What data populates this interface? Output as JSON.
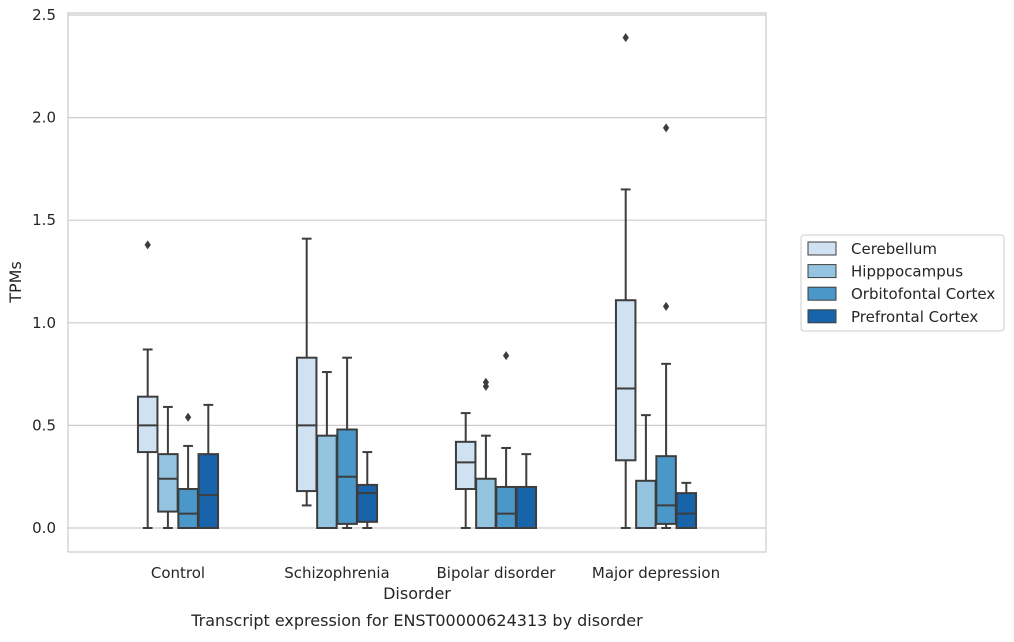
{
  "chart_data": {
    "type": "box",
    "title": "Transcript expression for ENST00000624313 by disorder",
    "xlabel": "Disorder",
    "ylabel": "TPMs",
    "ylim": [
      -0.11,
      2.51
    ],
    "yticks": [
      0.0,
      0.5,
      1.0,
      1.5,
      2.0,
      2.5
    ],
    "ytick_labels": [
      "0.0",
      "0.5",
      "1.0",
      "1.5",
      "2.0",
      "2.5"
    ],
    "grid": "horizontal",
    "legend_position": "right",
    "categories": [
      "Control",
      "Schizophrenia",
      "Bipolar disorder",
      "Major depression"
    ],
    "series": [
      {
        "name": "Cerebellum",
        "color": "#d0e1f2",
        "boxes": [
          {
            "whislo": 0.0,
            "q1": 0.37,
            "med": 0.5,
            "q3": 0.64,
            "whishi": 0.87,
            "fliers": [
              1.38
            ]
          },
          {
            "whislo": 0.11,
            "q1": 0.18,
            "med": 0.5,
            "q3": 0.83,
            "whishi": 1.41,
            "fliers": []
          },
          {
            "whislo": 0.0,
            "q1": 0.19,
            "med": 0.32,
            "q3": 0.42,
            "whishi": 0.56,
            "fliers": []
          },
          {
            "whislo": 0.0,
            "q1": 0.33,
            "med": 0.68,
            "q3": 1.11,
            "whishi": 1.65,
            "fliers": [
              2.39
            ]
          }
        ]
      },
      {
        "name": "Hipppocampus",
        "color": "#94c4df",
        "boxes": [
          {
            "whislo": 0.0,
            "q1": 0.08,
            "med": 0.24,
            "q3": 0.36,
            "whishi": 0.59,
            "fliers": []
          },
          {
            "whislo": 0.0,
            "q1": 0.0,
            "med": 0.0,
            "q3": 0.45,
            "whishi": 0.76,
            "fliers": []
          },
          {
            "whislo": 0.0,
            "q1": 0.0,
            "med": 0.0,
            "q3": 0.24,
            "whishi": 0.45,
            "fliers": [
              0.69,
              0.71
            ]
          },
          {
            "whislo": 0.0,
            "q1": 0.0,
            "med": 0.0,
            "q3": 0.23,
            "whishi": 0.55,
            "fliers": []
          }
        ]
      },
      {
        "name": "Orbitofontal Cortex",
        "color": "#4a98c9",
        "boxes": [
          {
            "whislo": 0.0,
            "q1": 0.0,
            "med": 0.07,
            "q3": 0.19,
            "whishi": 0.4,
            "fliers": [
              0.54
            ]
          },
          {
            "whislo": 0.0,
            "q1": 0.02,
            "med": 0.25,
            "q3": 0.48,
            "whishi": 0.83,
            "fliers": []
          },
          {
            "whislo": 0.0,
            "q1": 0.0,
            "med": 0.07,
            "q3": 0.2,
            "whishi": 0.39,
            "fliers": [
              0.84
            ]
          },
          {
            "whislo": 0.0,
            "q1": 0.02,
            "med": 0.11,
            "q3": 0.35,
            "whishi": 0.8,
            "fliers": [
              1.08,
              1.95
            ]
          }
        ]
      },
      {
        "name": "Prefrontal Cortex",
        "color": "#1764ab",
        "boxes": [
          {
            "whislo": 0.0,
            "q1": 0.0,
            "med": 0.16,
            "q3": 0.36,
            "whishi": 0.6,
            "fliers": []
          },
          {
            "whislo": 0.0,
            "q1": 0.03,
            "med": 0.17,
            "q3": 0.21,
            "whishi": 0.37,
            "fliers": []
          },
          {
            "whislo": 0.0,
            "q1": 0.0,
            "med": 0.0,
            "q3": 0.2,
            "whishi": 0.36,
            "fliers": []
          },
          {
            "whislo": 0.0,
            "q1": 0.0,
            "med": 0.07,
            "q3": 0.17,
            "whishi": 0.22,
            "fliers": []
          }
        ]
      }
    ]
  }
}
